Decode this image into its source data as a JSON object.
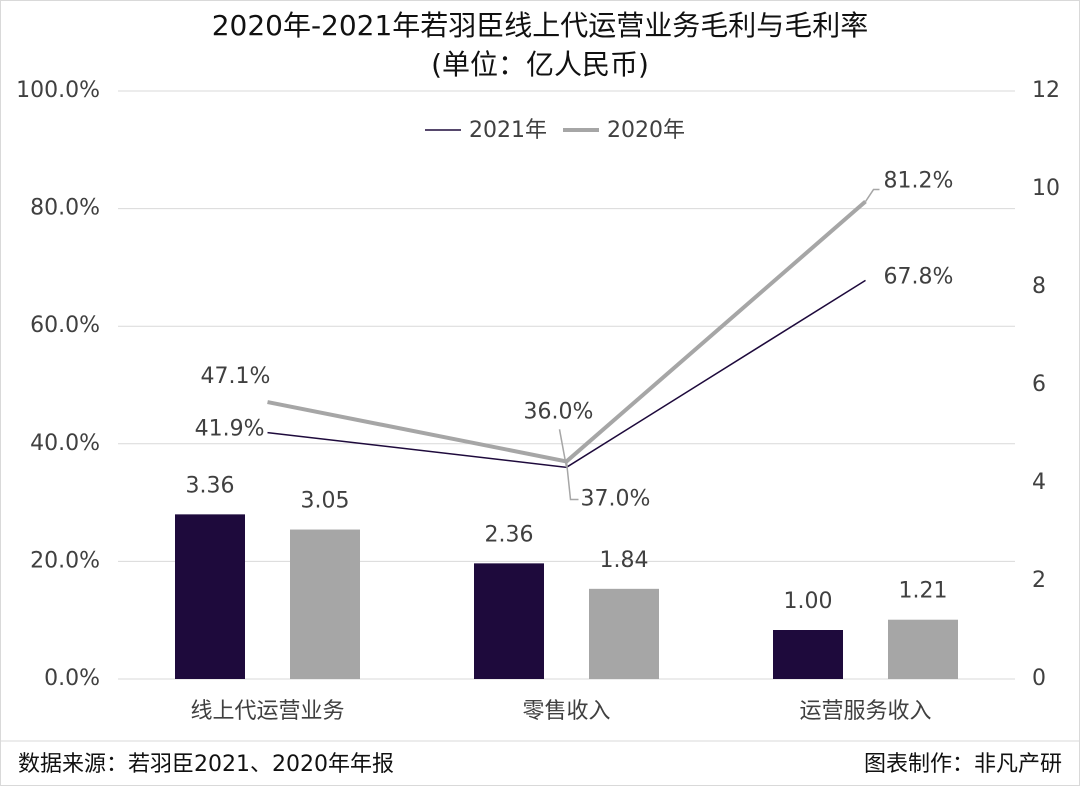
{
  "chart_data": {
    "type": "combo",
    "title": "2020年-2021年若羽臣线上代运营业务毛利与毛利率",
    "subtitle": "(单位：亿人民币)",
    "categories": [
      "线上代运营业务",
      "零售收入",
      "运营服务收入"
    ],
    "series": [
      {
        "type": "bar",
        "axis": "y2",
        "color": "#1e0a3c",
        "values": [
          3.36,
          2.36,
          1
        ],
        "value_labels": [
          "3.36",
          "2.36",
          "1.00"
        ]
      },
      {
        "type": "bar",
        "axis": "y2",
        "color": "#a6a6a6",
        "values": [
          3.05,
          1.84,
          1.21
        ],
        "value_labels": [
          "3.05",
          "1.84",
          "1.21"
        ]
      },
      {
        "type": "line",
        "name": "2021年",
        "color": "#1e0a3c",
        "values": [
          41.9,
          36.0,
          67.8
        ],
        "value_labels": [
          "41.9%",
          "36.0%",
          "67.8%"
        ]
      },
      {
        "type": "line",
        "name": "2020年",
        "color": "#a6a6a6",
        "values": [
          47.1,
          37.0,
          81.2
        ],
        "value_labels": [
          "47.1%",
          "37.0%",
          "81.2%"
        ]
      }
    ],
    "ylim": [
      0,
      100
    ],
    "yticks": [
      {
        "value": 0,
        "label": "0.0%"
      },
      {
        "value": 20,
        "label": "20.0%"
      },
      {
        "value": 40,
        "label": "40.0%"
      },
      {
        "value": 60,
        "label": "60.0%"
      },
      {
        "value": 80,
        "label": "80.0%"
      },
      {
        "value": 100,
        "label": "100.0%"
      }
    ],
    "y2lim": [
      0,
      12
    ],
    "y2ticks": [
      0,
      2,
      4,
      6,
      8,
      10,
      12
    ],
    "grid": true,
    "legend": "top",
    "source": "数据来源：若羽臣2021、2020年年报",
    "credit": "图表制作：非凡产研"
  }
}
